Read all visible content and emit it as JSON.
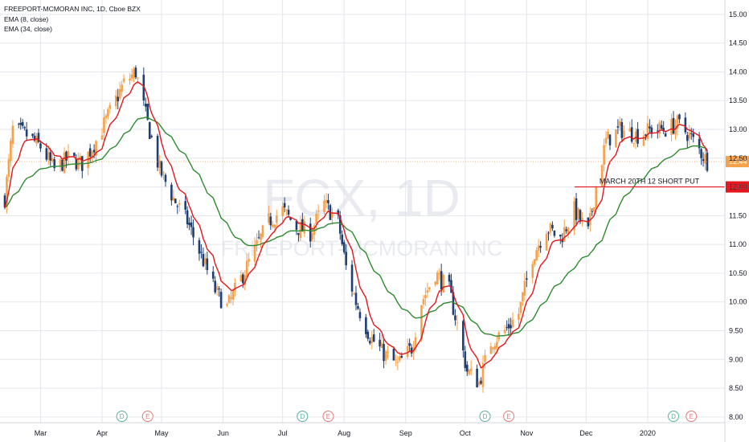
{
  "header": {
    "symbol_line": "FREEPORT-MCMORAN INC, 1D, Cboe BZX",
    "ema_fast_label": "EMA (8, close)",
    "ema_slow_label": "EMA (34, close)"
  },
  "watermark": {
    "ticker": "FCX, 1D",
    "name": "FREEPORT-MCMORAN INC"
  },
  "colors": {
    "up_candle": "#f7a24a",
    "down_candle": "#1f3f73",
    "ema_fast": "#e3171d",
    "ema_slow": "#2e8b2e",
    "annotation_line": "#e3171d",
    "price_badge": "#f7a24a",
    "level_badge": "#e3171d",
    "grid": "#e3e6ec",
    "event_dividend": "#5bb0a0",
    "event_earnings": "#e07a7a"
  },
  "annotation": {
    "text": "MARCH 20TH 12 SHORT PUT",
    "level": 12.0,
    "level_label": "12.00"
  },
  "last_price": {
    "value": 12.44,
    "label": "12.44"
  },
  "events": [
    {
      "type": "D",
      "date": "2019-04-11"
    },
    {
      "type": "E",
      "date": "2019-04-24"
    },
    {
      "type": "D",
      "date": "2019-07-11"
    },
    {
      "type": "E",
      "date": "2019-07-24"
    },
    {
      "type": "D",
      "date": "2019-10-11"
    },
    {
      "type": "E",
      "date": "2019-10-23"
    },
    {
      "type": "D",
      "date": "2020-01-14"
    },
    {
      "type": "E",
      "date": "2020-01-23"
    }
  ],
  "chart_data": {
    "type": "candlestick",
    "title": "FREEPORT-MCMORAN INC, 1D, Cboe BZX",
    "x_range": [
      "2019-02-11",
      "2020-01-31"
    ],
    "ylim": [
      7.9,
      15.25
    ],
    "y_ticks": [
      8.0,
      8.5,
      9.0,
      9.5,
      10.0,
      10.5,
      11.0,
      11.5,
      12.0,
      12.5,
      13.0,
      13.5,
      14.0,
      14.5,
      15.0
    ],
    "y_tick_labels": [
      "8.00",
      "8.50",
      "9.00",
      "9.50",
      "10.00",
      "10.50",
      "11.00",
      "11.50",
      "12.00",
      "12.50",
      "13.00",
      "13.50",
      "14.00",
      "14.50",
      "15.00"
    ],
    "x_ticks": [
      {
        "label": "Mar",
        "date": "2019-03-01"
      },
      {
        "label": "Apr",
        "date": "2019-04-01"
      },
      {
        "label": "May",
        "date": "2019-05-01"
      },
      {
        "label": "Jun",
        "date": "2019-06-01"
      },
      {
        "label": "Jul",
        "date": "2019-07-01"
      },
      {
        "label": "Aug",
        "date": "2019-08-01"
      },
      {
        "label": "Sep",
        "date": "2019-09-01"
      },
      {
        "label": "Oct",
        "date": "2019-10-01"
      },
      {
        "label": "Nov",
        "date": "2019-11-01"
      },
      {
        "label": "Dec",
        "date": "2019-12-01"
      },
      {
        "label": "2020",
        "date": "2020-01-01"
      }
    ],
    "close_anchors": [
      [
        "2019-02-11",
        11.8
      ],
      [
        "2019-02-15",
        13.0
      ],
      [
        "2019-02-22",
        12.9
      ],
      [
        "2019-03-01",
        12.7
      ],
      [
        "2019-03-08",
        12.3
      ],
      [
        "2019-03-15",
        12.5
      ],
      [
        "2019-03-22",
        12.4
      ],
      [
        "2019-03-29",
        12.8
      ],
      [
        "2019-04-05",
        13.3
      ],
      [
        "2019-04-12",
        13.8
      ],
      [
        "2019-04-18",
        14.0
      ],
      [
        "2019-04-24",
        13.1
      ],
      [
        "2019-04-30",
        12.3
      ],
      [
        "2019-05-07",
        11.8
      ],
      [
        "2019-05-14",
        11.4
      ],
      [
        "2019-05-21",
        10.8
      ],
      [
        "2019-05-28",
        10.2
      ],
      [
        "2019-06-03",
        9.9
      ],
      [
        "2019-06-10",
        10.4
      ],
      [
        "2019-06-17",
        10.9
      ],
      [
        "2019-06-24",
        11.4
      ],
      [
        "2019-07-01",
        11.6
      ],
      [
        "2019-07-08",
        11.3
      ],
      [
        "2019-07-15",
        11.2
      ],
      [
        "2019-07-22",
        11.7
      ],
      [
        "2019-07-29",
        11.4
      ],
      [
        "2019-08-02",
        10.6
      ],
      [
        "2019-08-07",
        10.0
      ],
      [
        "2019-08-14",
        9.4
      ],
      [
        "2019-08-21",
        9.1
      ],
      [
        "2019-08-28",
        8.9
      ],
      [
        "2019-09-04",
        9.2
      ],
      [
        "2019-09-09",
        10.0
      ],
      [
        "2019-09-16",
        10.5
      ],
      [
        "2019-09-23",
        10.2
      ],
      [
        "2019-09-27",
        9.6
      ],
      [
        "2019-10-02",
        8.8
      ],
      [
        "2019-10-08",
        8.6
      ],
      [
        "2019-10-14",
        9.3
      ],
      [
        "2019-10-21",
        9.5
      ],
      [
        "2019-10-28",
        9.8
      ],
      [
        "2019-11-04",
        10.8
      ],
      [
        "2019-11-11",
        11.3
      ],
      [
        "2019-11-18",
        11.1
      ],
      [
        "2019-11-25",
        11.6
      ],
      [
        "2019-12-02",
        11.2
      ],
      [
        "2019-12-06",
        12.0
      ],
      [
        "2019-12-11",
        12.8
      ],
      [
        "2019-12-18",
        13.0
      ],
      [
        "2019-12-27",
        12.9
      ],
      [
        "2020-01-03",
        13.0
      ],
      [
        "2020-01-10",
        13.0
      ],
      [
        "2020-01-16",
        13.1
      ],
      [
        "2020-01-22",
        12.9
      ],
      [
        "2020-01-31",
        12.44
      ]
    ],
    "series": [
      {
        "name": "EMA (8, close)",
        "role": "ema_fast",
        "period": 8
      },
      {
        "name": "EMA (34, close)",
        "role": "ema_slow",
        "period": 34
      }
    ]
  }
}
